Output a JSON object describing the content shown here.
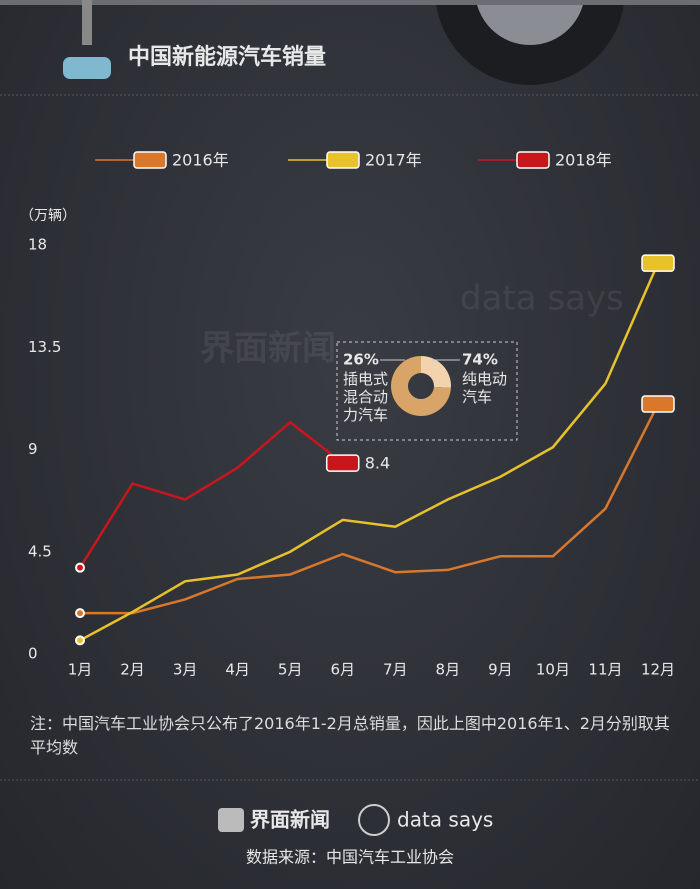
{
  "header": {
    "title": "中国新能源汽车销量"
  },
  "watermark": [
    "界面新闻",
    "data says"
  ],
  "chart_data": [
    {
      "type": "line",
      "y_label": "（万辆）",
      "categories": [
        "1月",
        "2月",
        "3月",
        "4月",
        "5月",
        "6月",
        "7月",
        "8月",
        "9月",
        "10月",
        "11月",
        "12月"
      ],
      "series": [
        {
          "name": "2016年",
          "color": "#d9772a",
          "values": [
            1.8,
            1.8,
            2.4,
            3.3,
            3.5,
            4.4,
            3.6,
            3.7,
            4.3,
            4.3,
            6.4,
            11.0
          ]
        },
        {
          "name": "2017年",
          "color": "#e8c22a",
          "values": [
            0.6,
            1.85,
            3.2,
            3.5,
            4.5,
            5.9,
            5.6,
            6.8,
            7.8,
            9.1,
            11.9,
            17.2
          ]
        },
        {
          "name": "2018年",
          "color": "#c8161d",
          "values": [
            3.8,
            7.5,
            6.8,
            8.2,
            10.2,
            8.4,
            null,
            null,
            null,
            null,
            null,
            null
          ]
        }
      ],
      "ylim": [
        0,
        18
      ],
      "yticks": [
        0,
        4.5,
        9,
        13.5,
        18
      ],
      "grid": false
    },
    {
      "type": "pie",
      "categories": [
        "插电式混合动力汽车",
        "纯电动汽车"
      ],
      "values": [
        26,
        74
      ],
      "value_labels": [
        "26%",
        "74%"
      ],
      "colors": [
        "#f3d3ad",
        "#d8a468"
      ]
    }
  ],
  "note": "注：中国汽车工业协会只公布了2016年1-2月总销量，因此上图中2016年1、2月分别取其平均数",
  "footer": {
    "logos": [
      "界面新闻",
      "data says"
    ],
    "source": "数据来源：中国汽车工业协会"
  }
}
